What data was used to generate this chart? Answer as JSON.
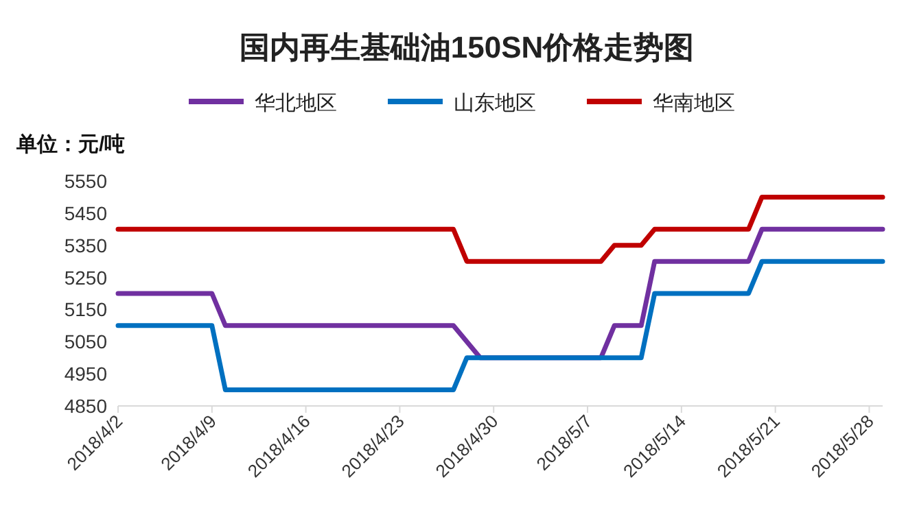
{
  "chart_data": {
    "type": "line",
    "title": "国内再生基础油150SN价格走势图",
    "ylabel": "单位：元/吨",
    "legend": "top",
    "grid": false,
    "xlim": [
      "2018-04-02",
      "2018-05-29"
    ],
    "xticks": [
      {
        "value": "2018-04-02",
        "label": "2018/4/2"
      },
      {
        "value": "2018-04-09",
        "label": "2018/4/9"
      },
      {
        "value": "2018-04-16",
        "label": "2018/4/16"
      },
      {
        "value": "2018-04-23",
        "label": "2018/4/23"
      },
      {
        "value": "2018-04-30",
        "label": "2018/4/30"
      },
      {
        "value": "2018-05-07",
        "label": "2018/5/7"
      },
      {
        "value": "2018-05-14",
        "label": "2018/5/14"
      },
      {
        "value": "2018-05-21",
        "label": "2018/5/21"
      },
      {
        "value": "2018-05-28",
        "label": "2018/5/28"
      }
    ],
    "ylim": [
      4850,
      5550
    ],
    "yticks": [
      4850,
      4950,
      5050,
      5150,
      5250,
      5350,
      5450,
      5550
    ],
    "series": [
      {
        "name": "华北地区",
        "color": "#7030a0",
        "x": [
          "2018-04-02",
          "2018-04-09",
          "2018-04-10",
          "2018-04-27",
          "2018-04-29",
          "2018-05-08",
          "2018-05-09",
          "2018-05-11",
          "2018-05-12",
          "2018-05-19",
          "2018-05-20",
          "2018-05-29"
        ],
        "values": [
          5200,
          5200,
          5100,
          5100,
          5000,
          5000,
          5100,
          5100,
          5300,
          5300,
          5400,
          5400
        ]
      },
      {
        "name": "山东地区",
        "color": "#0070c0",
        "x": [
          "2018-04-02",
          "2018-04-09",
          "2018-04-10",
          "2018-04-27",
          "2018-04-28",
          "2018-05-11",
          "2018-05-12",
          "2018-05-19",
          "2018-05-20",
          "2018-05-29"
        ],
        "values": [
          5100,
          5100,
          4900,
          4900,
          5000,
          5000,
          5200,
          5200,
          5300,
          5300
        ]
      },
      {
        "name": "华南地区",
        "color": "#c00000",
        "x": [
          "2018-04-02",
          "2018-04-27",
          "2018-04-28",
          "2018-05-08",
          "2018-05-09",
          "2018-05-11",
          "2018-05-12",
          "2018-05-19",
          "2018-05-20",
          "2018-05-29"
        ],
        "values": [
          5400,
          5400,
          5300,
          5300,
          5350,
          5350,
          5400,
          5400,
          5500,
          5500
        ]
      }
    ]
  }
}
